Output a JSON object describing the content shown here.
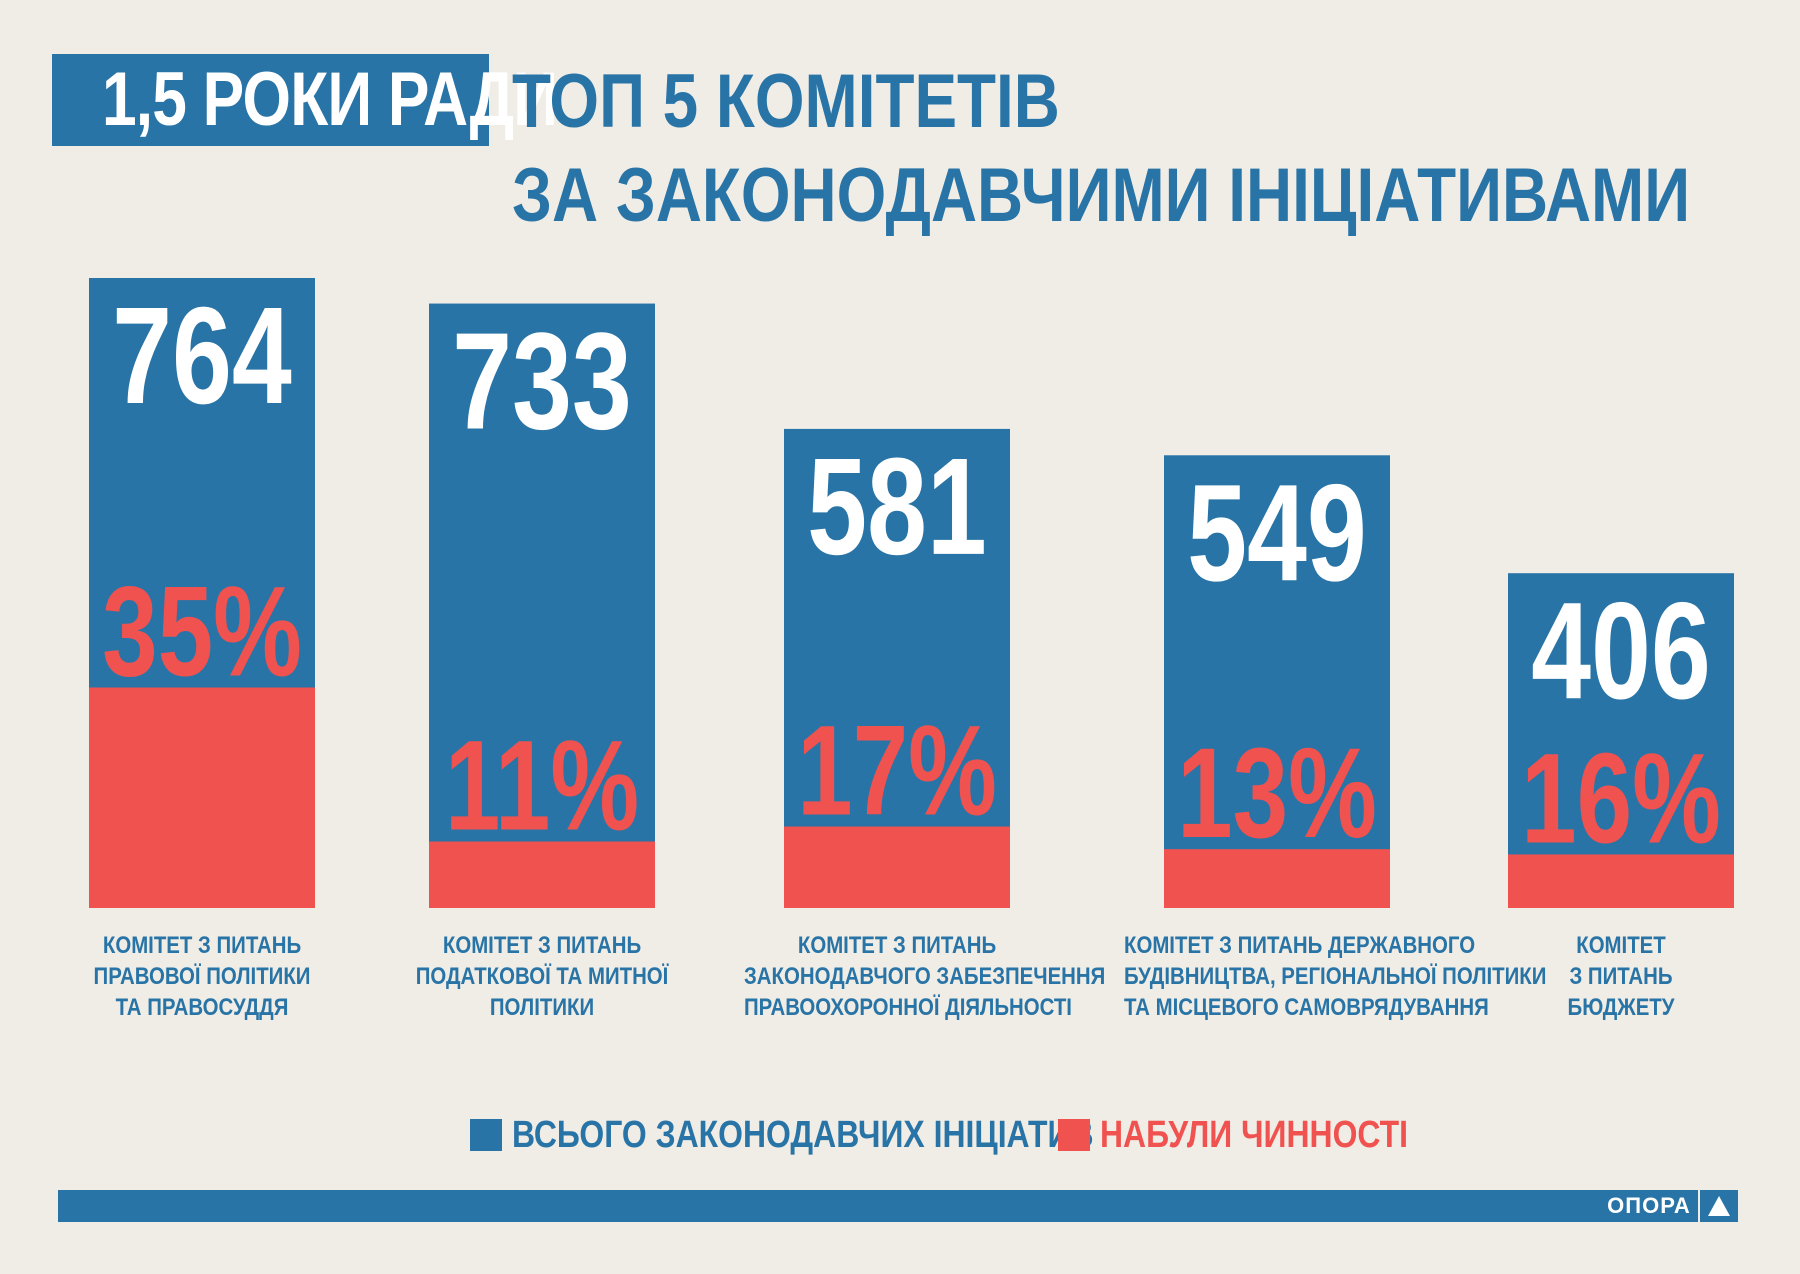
{
  "badge": "1,5 РОКИ РАДИ",
  "title": {
    "line1": "ТОП 5 КОМІТЕТІВ",
    "line2": "ЗА ЗАКОНОДАВЧИМИ ІНІЦІАТИВАМИ"
  },
  "colors": {
    "total": "#2874a6",
    "enacted": "#f0524f",
    "background": "#f0ece6"
  },
  "chart_data": {
    "type": "bar",
    "title": "ТОП 5 КОМІТЕТІВ ЗА ЗАКОНОДАВЧИМИ ІНІЦІАТИВАМИ",
    "categories": [
      [
        "КОМІТЕТ З ПИТАНЬ",
        "ПРАВОВОЇ ПОЛІТИКИ",
        "ТА ПРАВОСУДДЯ"
      ],
      [
        "КОМІТЕТ З ПИТАНЬ",
        "ПОДАТКОВОЇ ТА МИТНОЇ",
        "ПОЛІТИКИ"
      ],
      [
        "КОМІТЕТ З ПИТАНЬ",
        "ЗАКОНОДАВЧОГО ЗАБЕЗПЕЧЕННЯ",
        "ПРАВООХОРОННОЇ ДІЯЛЬНОСТІ"
      ],
      [
        "КОМІТЕТ З ПИТАНЬ ДЕРЖАВНОГО",
        "БУДІВНИЦТВА, РЕГІОНАЛЬНОЇ ПОЛІТИКИ",
        "ТА МІСЦЕВОГО САМОВРЯДУВАННЯ"
      ],
      [
        "КОМІТЕТ",
        "З ПИТАНЬ",
        "БЮДЖЕТУ"
      ]
    ],
    "series": [
      {
        "name": "ВСЬОГО ЗАКОНОДАВЧИХ ІНІЦІАТИВ",
        "values": [
          764,
          733,
          581,
          549,
          406
        ]
      },
      {
        "name": "НАБУЛИ ЧИННОСТІ",
        "values": [
          35,
          11,
          17,
          13,
          16
        ],
        "unit": "%"
      }
    ],
    "value_labels": [
      "764",
      "733",
      "581",
      "549",
      "406"
    ],
    "percent_labels": [
      "35%",
      "11%",
      "17%",
      "13%",
      "16%"
    ],
    "ylim": [
      0,
      764
    ]
  },
  "legend": {
    "total": "ВСЬОГО ЗАКОНОДАВЧИХ ІНІЦІАТИВ",
    "enacted": "НАБУЛИ ЧИННОСТІ"
  },
  "footer": {
    "logo": "ОПОРА"
  }
}
